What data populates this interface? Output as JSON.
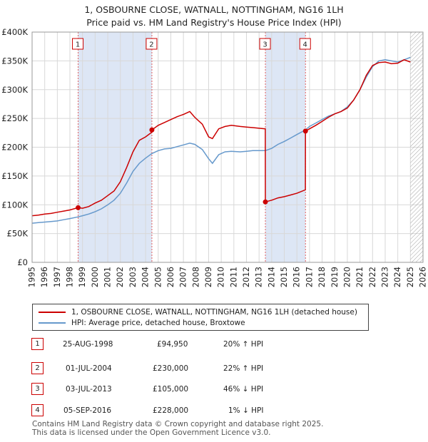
{
  "title_line1": "1, OSBOURNE CLOSE, WATNALL, NOTTINGHAM, NG16 1LH",
  "title_line2": "Price paid vs. HM Land Registry's House Price Index (HPI)",
  "colors": {
    "property": "#cc0000",
    "hpi": "#6699cc",
    "shade": "#dde6f5",
    "grid": "#d8d8d8",
    "hatch": "#999999"
  },
  "legend": {
    "property_label": "1, OSBOURNE CLOSE, WATNALL, NOTTINGHAM, NG16 1LH (detached house)",
    "hpi_label": "HPI: Average price, detached house, Broxtowe"
  },
  "transactions": [
    {
      "num": "1",
      "date": "25-AUG-1998",
      "price": "£94,950",
      "hpi_change": "20% ↑ HPI"
    },
    {
      "num": "2",
      "date": "01-JUL-2004",
      "price": "£230,000",
      "hpi_change": "22% ↑ HPI"
    },
    {
      "num": "3",
      "date": "03-JUL-2013",
      "price": "£105,000",
      "hpi_change": "46% ↓ HPI"
    },
    {
      "num": "4",
      "date": "05-SEP-2016",
      "price": "£228,000",
      "hpi_change": "1% ↓ HPI"
    }
  ],
  "footer_line1": "Contains HM Land Registry data © Crown copyright and database right 2025.",
  "footer_line2": "This data is licensed under the Open Government Licence v3.0.",
  "chart_data": {
    "type": "line",
    "title": "1, OSBOURNE CLOSE, WATNALL, NOTTINGHAM, NG16 1LH",
    "subtitle": "Price paid vs. HM Land Registry's House Price Index (HPI)",
    "xlabel": "",
    "ylabel": "",
    "xlim": [
      1995,
      2026
    ],
    "ylim": [
      0,
      400000
    ],
    "y_ticks": [
      0,
      50000,
      100000,
      150000,
      200000,
      250000,
      300000,
      350000,
      400000
    ],
    "y_tick_labels": [
      "£0",
      "£50K",
      "£100K",
      "£150K",
      "£200K",
      "£250K",
      "£300K",
      "£350K",
      "£400K"
    ],
    "x_ticks": [
      1995,
      1996,
      1997,
      1998,
      1999,
      2000,
      2001,
      2002,
      2003,
      2004,
      2005,
      2006,
      2007,
      2008,
      2009,
      2010,
      2011,
      2012,
      2013,
      2014,
      2015,
      2016,
      2017,
      2018,
      2019,
      2020,
      2021,
      2022,
      2023,
      2024,
      2025,
      2026
    ],
    "grid": true,
    "legend_position": "below-chart",
    "shaded_periods": [
      [
        1998.65,
        2004.5
      ],
      [
        2013.5,
        2016.68
      ]
    ],
    "hatched_region_start": 2025.0,
    "sales": [
      {
        "label": "1",
        "x": 1998.65,
        "y": 94950
      },
      {
        "label": "2",
        "x": 2004.5,
        "y": 230000
      },
      {
        "label": "3",
        "x": 2013.5,
        "y": 105000
      },
      {
        "label": "4",
        "x": 2016.68,
        "y": 228000
      }
    ],
    "series": [
      {
        "name": "1, OSBOURNE CLOSE, WATNALL, NOTTINGHAM, NG16 1LH (detached house)",
        "x": [
          1995,
          1995.5,
          1996,
          1996.5,
          1997,
          1997.5,
          1998,
          1998.65,
          1999,
          1999.5,
          2000,
          2000.5,
          2001,
          2001.5,
          2002,
          2002.5,
          2003,
          2003.5,
          2004,
          2004.49,
          2004.5,
          2005,
          2005.5,
          2006,
          2006.5,
          2007,
          2007.5,
          2007.9,
          2008.5,
          2009,
          2009.3,
          2009.8,
          2010.3,
          2010.8,
          2011.5,
          2012,
          2012.5,
          2013,
          2013.49,
          2013.5,
          2014,
          2014.5,
          2015,
          2015.5,
          2016,
          2016.67,
          2016.68,
          2017,
          2017.5,
          2018,
          2018.5,
          2019,
          2019.5,
          2020,
          2020.5,
          2021,
          2021.5,
          2022,
          2022.5,
          2023,
          2023.5,
          2024,
          2024.5,
          2025
        ],
        "values": [
          81000,
          82000,
          84000,
          85000,
          87000,
          89000,
          91000,
          94950,
          94000,
          97000,
          103000,
          108000,
          116000,
          124000,
          140000,
          165000,
          192000,
          212000,
          218000,
          226000,
          230000,
          238000,
          243000,
          248000,
          253000,
          257000,
          262000,
          252000,
          240000,
          218000,
          215000,
          232000,
          236000,
          238000,
          236000,
          235000,
          234000,
          233000,
          232000,
          105000,
          108000,
          112000,
          114000,
          117000,
          120000,
          126000,
          228000,
          232000,
          238000,
          245000,
          252000,
          258000,
          262000,
          268000,
          282000,
          300000,
          325000,
          342000,
          347000,
          348000,
          345000,
          346000,
          352000,
          348000
        ]
      },
      {
        "name": "HPI: Average price, detached house, Broxtowe",
        "x": [
          1995,
          1995.5,
          1996,
          1996.5,
          1997,
          1997.5,
          1998,
          1998.65,
          1999,
          1999.5,
          2000,
          2000.5,
          2001,
          2001.5,
          2002,
          2002.5,
          2003,
          2003.5,
          2004,
          2004.5,
          2005,
          2005.5,
          2006,
          2006.5,
          2007,
          2007.5,
          2007.9,
          2008.5,
          2009,
          2009.3,
          2009.8,
          2010.3,
          2010.8,
          2011.5,
          2012,
          2012.5,
          2013,
          2013.5,
          2014,
          2014.5,
          2015,
          2015.5,
          2016,
          2016.68,
          2017,
          2017.5,
          2018,
          2018.5,
          2019,
          2019.5,
          2020,
          2020.5,
          2021,
          2021.5,
          2022,
          2022.5,
          2023,
          2023.5,
          2024,
          2024.5,
          2025
        ],
        "values": [
          68000,
          69000,
          70000,
          71000,
          72000,
          74000,
          76000,
          79000,
          81000,
          84000,
          88000,
          93000,
          100000,
          108000,
          120000,
          138000,
          158000,
          172000,
          181000,
          189000,
          194000,
          197000,
          198000,
          201000,
          204000,
          207000,
          205000,
          196000,
          180000,
          172000,
          187000,
          192000,
          193000,
          192000,
          193000,
          194000,
          194000,
          194000,
          198000,
          205000,
          210000,
          216000,
          222000,
          230000,
          236000,
          242000,
          248000,
          254000,
          258000,
          262000,
          270000,
          282000,
          300000,
          322000,
          340000,
          350000,
          352000,
          350000,
          348000,
          352000,
          356000
        ]
      }
    ]
  }
}
